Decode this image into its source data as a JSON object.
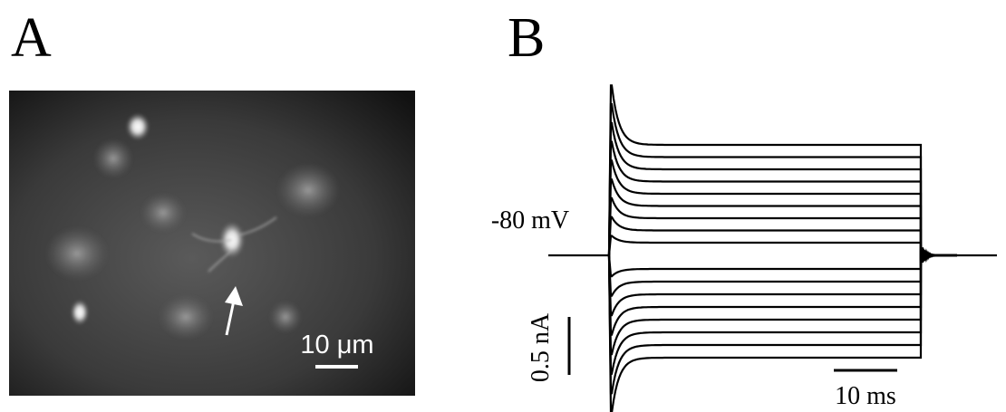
{
  "panel_a": {
    "label": "A",
    "scale_bar": "10 μm"
  },
  "panel_b": {
    "label": "B",
    "holding": "-80 mV",
    "scale_y": "0.5 nA",
    "scale_x": "10 ms"
  }
}
